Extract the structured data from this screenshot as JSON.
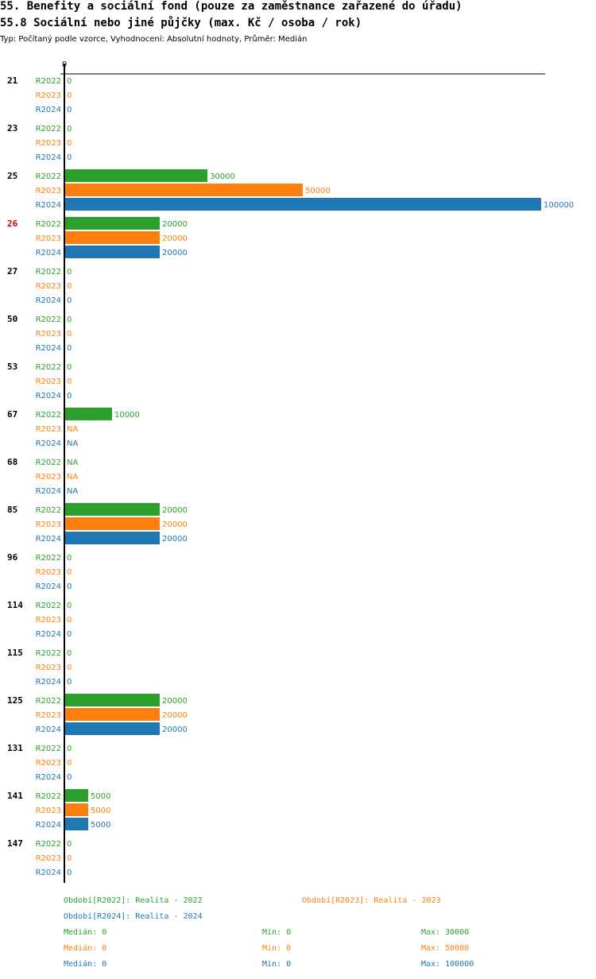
{
  "header": {
    "title": "55. Benefity a sociální fond (pouze za zaměstnance zařazené do úřadu)",
    "subtitle": "55.8 Sociální nebo jiné půjčky (max. Kč / osoba / rok)",
    "meta": "Typ: Počítaný podle vzorce, Vyhodnocení: Absolutní hodnoty, Průměr: Medián"
  },
  "colors": {
    "R2022": "#2ca02c",
    "R2023": "#ff7f0e",
    "R2024": "#1f77b4",
    "highlight": "#cc0000"
  },
  "chart_data": {
    "type": "bar",
    "orientation": "horizontal",
    "axis_zero_label": "0",
    "xlim": [
      0,
      100000
    ],
    "highlight_category": "26",
    "categories": [
      "21",
      "23",
      "25",
      "26",
      "27",
      "50",
      "53",
      "67",
      "68",
      "85",
      "96",
      "114",
      "115",
      "125",
      "131",
      "141",
      "147"
    ],
    "series": [
      {
        "name": "R2022",
        "values": [
          0,
          0,
          30000,
          20000,
          0,
          0,
          0,
          10000,
          "NA",
          20000,
          0,
          0,
          0,
          20000,
          0,
          5000,
          0
        ]
      },
      {
        "name": "R2023",
        "values": [
          0,
          0,
          50000,
          20000,
          0,
          0,
          0,
          "NA",
          "NA",
          20000,
          0,
          0,
          0,
          20000,
          0,
          5000,
          0
        ]
      },
      {
        "name": "R2024",
        "values": [
          0,
          0,
          100000,
          20000,
          0,
          0,
          0,
          "NA",
          "NA",
          20000,
          0,
          0,
          0,
          20000,
          0,
          5000,
          0
        ]
      }
    ]
  },
  "legend": {
    "r2022": "Období[R2022]: Realita - 2022",
    "r2023": "Období[R2023]: Realita - 2023",
    "r2024": "Období[R2024]: Realita - 2024"
  },
  "stats": [
    {
      "median": "Medián: 0",
      "min": "Min: 0",
      "max": "Max: 30000"
    },
    {
      "median": "Medián: 0",
      "min": "Min: 0",
      "max": "Max: 50000"
    },
    {
      "median": "Medián: 0",
      "min": "Min: 0",
      "max": "Max: 100000"
    }
  ]
}
